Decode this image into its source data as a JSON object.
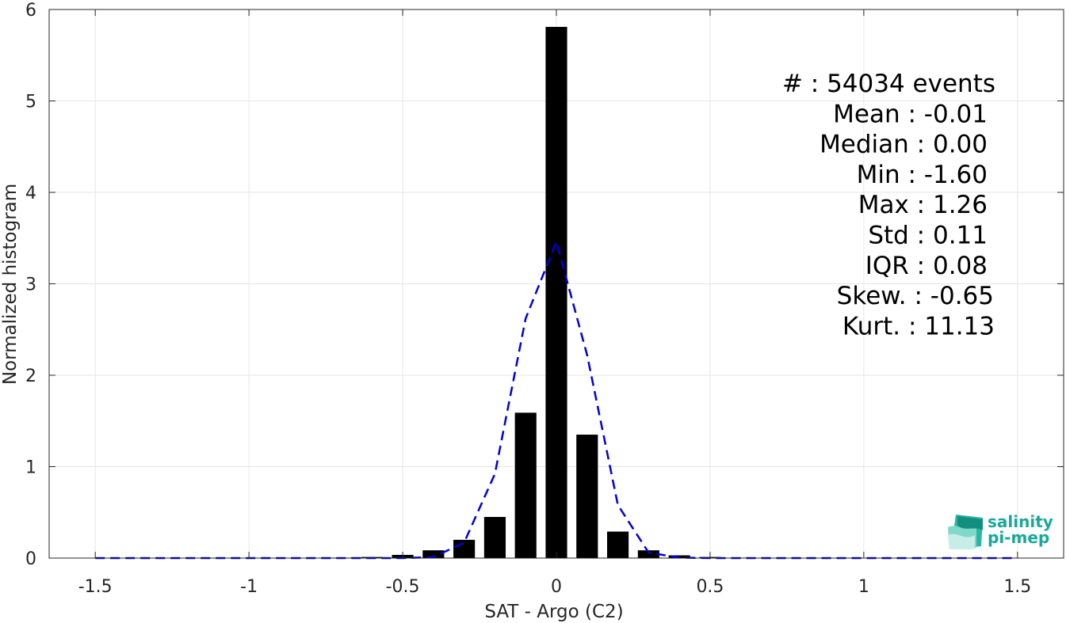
{
  "chart_data": {
    "type": "bar",
    "xlabel": "SAT - Argo (C2)",
    "ylabel": "Normalized histogram",
    "xlim": [
      -1.65,
      1.65
    ],
    "ylim": [
      0,
      6
    ],
    "xticks": [
      -1.5,
      -1,
      -0.5,
      0,
      0.5,
      1,
      1.5
    ],
    "xtick_labels": [
      "-1.5",
      "-1",
      "-0.5",
      "0",
      "0.5",
      "1",
      "1.5"
    ],
    "yticks": [
      0,
      1,
      2,
      3,
      4,
      5,
      6
    ],
    "ytick_labels": [
      "0",
      "1",
      "2",
      "3",
      "4",
      "5",
      "6"
    ],
    "grid": true,
    "bar_width": 0.07,
    "series": [
      {
        "type": "bar",
        "color": "#000000",
        "x": [
          -1.0,
          -0.9,
          -0.8,
          -0.7,
          -0.6,
          -0.5,
          -0.4,
          -0.3,
          -0.2,
          -0.1,
          0.0,
          0.1,
          0.2,
          0.3,
          0.4,
          0.5,
          0.6,
          0.7,
          0.8,
          0.9,
          1.0
        ],
        "values": [
          0.001,
          0.002,
          0.003,
          0.005,
          0.012,
          0.035,
          0.085,
          0.2,
          0.45,
          1.59,
          5.81,
          1.35,
          0.29,
          0.085,
          0.03,
          0.012,
          0.005,
          0.003,
          0.002,
          0.001,
          0.001
        ]
      },
      {
        "type": "line",
        "style": "dashed",
        "color": "#0000dd",
        "x": [
          -1.5,
          -1.4,
          -1.3,
          -1.2,
          -1.1,
          -1.0,
          -0.9,
          -0.8,
          -0.7,
          -0.6,
          -0.5,
          -0.4,
          -0.3,
          -0.2,
          -0.1,
          0.0,
          0.1,
          0.2,
          0.3,
          0.4,
          0.5,
          0.6,
          0.7,
          0.8,
          0.9,
          1.0,
          1.1,
          1.2,
          1.3,
          1.4,
          1.5
        ],
        "values": [
          0,
          0,
          0,
          0,
          0,
          0,
          0,
          0,
          0,
          0,
          0,
          0.01,
          0.17,
          0.92,
          2.62,
          3.46,
          2.22,
          0.58,
          0.06,
          0.005,
          0,
          0,
          0,
          0,
          0,
          0,
          0,
          0,
          0,
          0,
          0
        ]
      }
    ],
    "annotation_lines": [
      "#  : 54034 events",
      "Mean : -0.01",
      "Median : 0.00",
      "Min : -1.60",
      "Max : 1.26",
      "Std : 0.11",
      "IQR : 0.08",
      "Skew. : -0.65",
      "Kurt. : 11.13"
    ],
    "annotation_placement": "top-right"
  },
  "logo": {
    "line1": "salinity",
    "line2": "pi-mep",
    "color": "#1aa89a"
  }
}
